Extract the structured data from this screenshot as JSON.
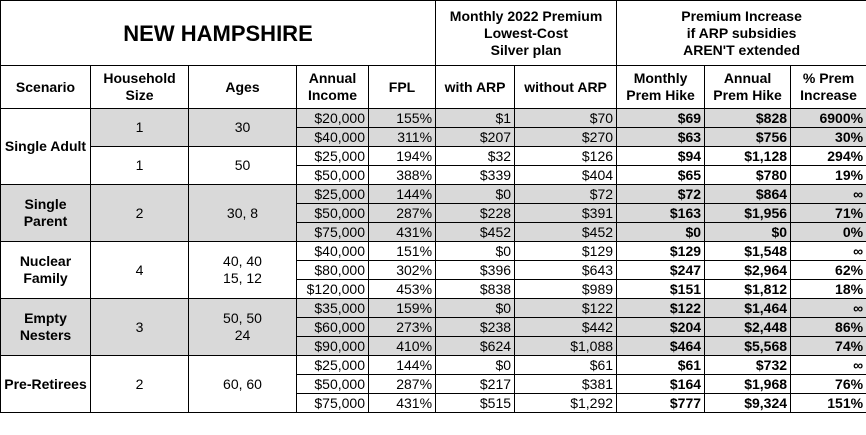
{
  "title": "NEW HAMPSHIRE",
  "header_groups": [
    "Monthly 2022 Premium\nLowest-Cost\nSilver plan",
    "Premium Increase\nif ARP subsidies\nAREN'T extended"
  ],
  "columns": [
    "Scenario",
    "Household Size",
    "Ages",
    "Annual Income",
    "FPL",
    "with ARP",
    "without ARP",
    "Monthly Prem Hike",
    "Annual Prem Hike",
    "% Prem Increase"
  ],
  "groups": [
    {
      "scenario": "Single Adult",
      "subgroups": [
        {
          "household": "1",
          "ages": "30",
          "rows": [
            [
              "$20,000",
              "155%",
              "$1",
              "$70",
              "$69",
              "$828",
              "6900%"
            ],
            [
              "$40,000",
              "311%",
              "$207",
              "$270",
              "$63",
              "$756",
              "30%"
            ]
          ]
        },
        {
          "household": "1",
          "ages": "50",
          "rows": [
            [
              "$25,000",
              "194%",
              "$32",
              "$126",
              "$94",
              "$1,128",
              "294%"
            ],
            [
              "$50,000",
              "388%",
              "$339",
              "$404",
              "$65",
              "$780",
              "19%"
            ]
          ]
        }
      ]
    },
    {
      "scenario": "Single Parent",
      "subgroups": [
        {
          "household": "2",
          "ages": "30, 8",
          "rows": [
            [
              "$25,000",
              "144%",
              "$0",
              "$72",
              "$72",
              "$864",
              "∞"
            ],
            [
              "$50,000",
              "287%",
              "$228",
              "$391",
              "$163",
              "$1,956",
              "71%"
            ],
            [
              "$75,000",
              "431%",
              "$452",
              "$452",
              "$0",
              "$0",
              "0%"
            ]
          ]
        }
      ]
    },
    {
      "scenario": "Nuclear Family",
      "subgroups": [
        {
          "household": "4",
          "ages": "40, 40\n15, 12",
          "rows": [
            [
              "$40,000",
              "151%",
              "$0",
              "$129",
              "$129",
              "$1,548",
              "∞"
            ],
            [
              "$80,000",
              "302%",
              "$396",
              "$643",
              "$247",
              "$2,964",
              "62%"
            ],
            [
              "$120,000",
              "453%",
              "$838",
              "$989",
              "$151",
              "$1,812",
              "18%"
            ]
          ]
        }
      ]
    },
    {
      "scenario": "Empty Nesters",
      "subgroups": [
        {
          "household": "3",
          "ages": "50, 50\n24",
          "rows": [
            [
              "$35,000",
              "159%",
              "$0",
              "$122",
              "$122",
              "$1,464",
              "∞"
            ],
            [
              "$60,000",
              "273%",
              "$238",
              "$442",
              "$204",
              "$2,448",
              "86%"
            ],
            [
              "$90,000",
              "410%",
              "$624",
              "$1,088",
              "$464",
              "$5,568",
              "74%"
            ]
          ]
        }
      ]
    },
    {
      "scenario": "Pre-Retirees",
      "subgroups": [
        {
          "household": "2",
          "ages": "60, 60",
          "rows": [
            [
              "$25,000",
              "144%",
              "$0",
              "$61",
              "$61",
              "$732",
              "∞"
            ],
            [
              "$50,000",
              "287%",
              "$217",
              "$381",
              "$164",
              "$1,968",
              "76%"
            ],
            [
              "$75,000",
              "431%",
              "$515",
              "$1,292",
              "$777",
              "$9,324",
              "151%"
            ]
          ]
        }
      ]
    }
  ]
}
